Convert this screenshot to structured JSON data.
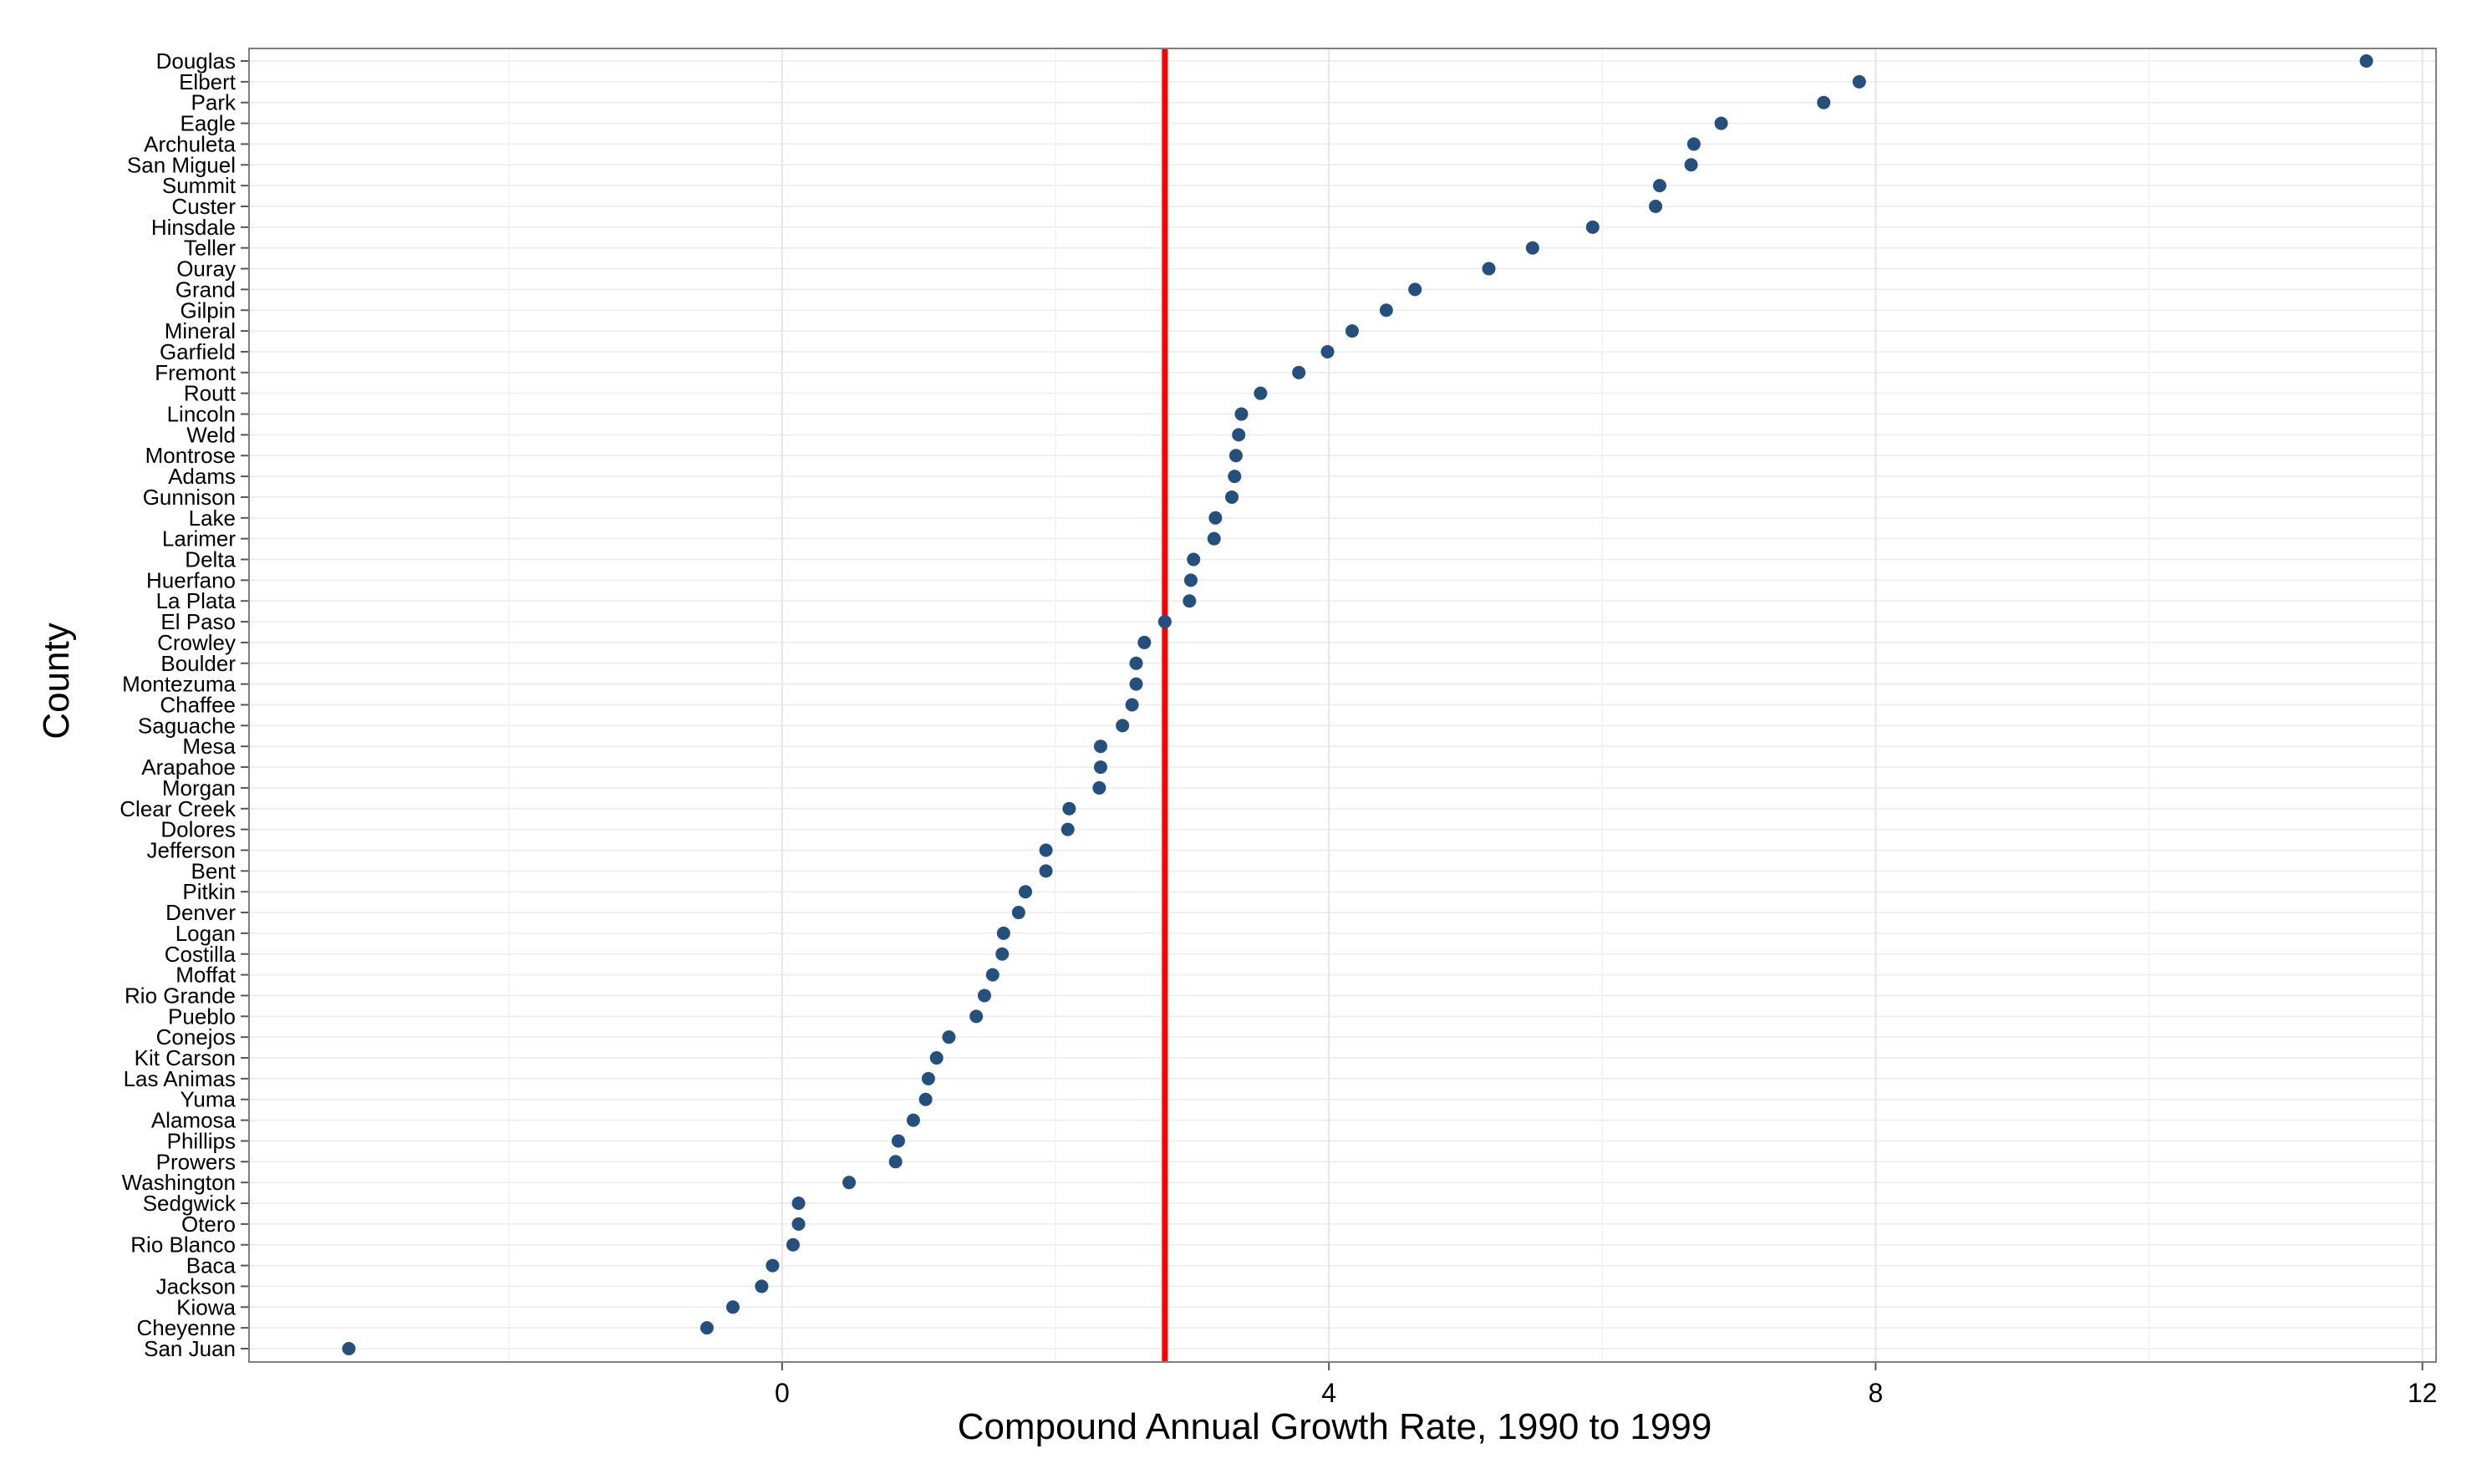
{
  "chart_data": {
    "type": "scatter",
    "title": "",
    "xlabel": "Compound Annual Growth Rate, 1990 to 1999",
    "ylabel": "County",
    "xlim": [
      -3.9,
      12.1
    ],
    "xticks": [
      0,
      4,
      8,
      12
    ],
    "grid": true,
    "point_color": "#23507f",
    "reference_line": {
      "x": 2.8,
      "color": "#ff0000"
    },
    "categories": [
      "San Juan",
      "Cheyenne",
      "Kiowa",
      "Jackson",
      "Baca",
      "Rio Blanco",
      "Otero",
      "Sedgwick",
      "Washington",
      "Prowers",
      "Phillips",
      "Alamosa",
      "Yuma",
      "Las Animas",
      "Kit Carson",
      "Conejos",
      "Pueblo",
      "Rio Grande",
      "Moffat",
      "Costilla",
      "Logan",
      "Denver",
      "Pitkin",
      "Bent",
      "Jefferson",
      "Dolores",
      "Clear Creek",
      "Morgan",
      "Arapahoe",
      "Mesa",
      "Saguache",
      "Chaffee",
      "Montezuma",
      "Boulder",
      "Crowley",
      "El Paso",
      "La Plata",
      "Huerfano",
      "Delta",
      "Larimer",
      "Lake",
      "Gunnison",
      "Adams",
      "Montrose",
      "Weld",
      "Lincoln",
      "Routt",
      "Fremont",
      "Garfield",
      "Mineral",
      "Gilpin",
      "Grand",
      "Ouray",
      "Teller",
      "Hinsdale",
      "Custer",
      "Summit",
      "San Miguel",
      "Archuleta",
      "Eagle",
      "Park",
      "Elbert",
      "Douglas"
    ],
    "values": [
      -3.17,
      -0.55,
      -0.36,
      -0.15,
      -0.07,
      0.08,
      0.12,
      0.12,
      0.49,
      0.83,
      0.85,
      0.96,
      1.05,
      1.07,
      1.13,
      1.22,
      1.42,
      1.48,
      1.54,
      1.61,
      1.62,
      1.73,
      1.78,
      1.93,
      1.93,
      2.09,
      2.1,
      2.32,
      2.33,
      2.33,
      2.49,
      2.56,
      2.59,
      2.59,
      2.65,
      2.8,
      2.98,
      2.99,
      3.01,
      3.16,
      3.17,
      3.29,
      3.31,
      3.32,
      3.34,
      3.36,
      3.5,
      3.78,
      3.99,
      4.17,
      4.42,
      4.63,
      5.17,
      5.49,
      5.93,
      6.39,
      6.42,
      6.65,
      6.67,
      6.87,
      7.62,
      7.88,
      11.59
    ]
  }
}
